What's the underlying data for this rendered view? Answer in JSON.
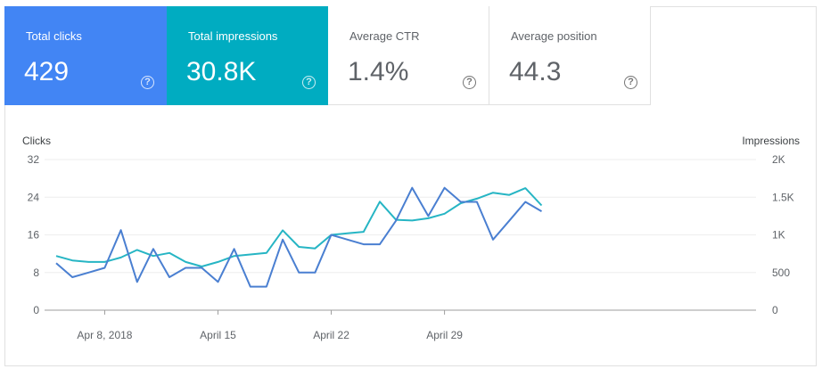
{
  "metrics": {
    "clicks": {
      "label": "Total clicks",
      "value": "429",
      "help_icon": "help-circle-icon",
      "color": "#4285f4"
    },
    "impressions": {
      "label": "Total impressions",
      "value": "30.8K",
      "help_icon": "help-circle-icon",
      "color": "#00acc1"
    },
    "ctr": {
      "label": "Average CTR",
      "value": "1.4%",
      "help_icon": "help-circle-icon"
    },
    "position": {
      "label": "Average position",
      "value": "44.3",
      "help_icon": "help-circle-icon"
    }
  },
  "chart_data": {
    "type": "line",
    "x": [
      "Apr 5",
      "Apr 6",
      "Apr 7",
      "Apr 8",
      "Apr 9",
      "Apr 10",
      "Apr 11",
      "Apr 12",
      "Apr 13",
      "Apr 14",
      "Apr 15",
      "Apr 16",
      "Apr 17",
      "Apr 18",
      "Apr 19",
      "Apr 20",
      "Apr 21",
      "Apr 22",
      "Apr 23",
      "Apr 24",
      "Apr 25",
      "Apr 26",
      "Apr 27",
      "Apr 28",
      "Apr 29",
      "Apr 30",
      "May 1",
      "May 2",
      "May 3",
      "May 4",
      "May 5"
    ],
    "x_tick_labels": [
      {
        "index": 3,
        "label": "Apr 8, 2018"
      },
      {
        "index": 10,
        "label": "April 15"
      },
      {
        "index": 17,
        "label": "April 22"
      },
      {
        "index": 24,
        "label": "April 29"
      }
    ],
    "left_axis": {
      "label": "Clicks",
      "ticks": [
        "0",
        "8",
        "16",
        "24",
        "32"
      ],
      "range": [
        0,
        32
      ]
    },
    "right_axis": {
      "label": "Impressions",
      "ticks": [
        "0",
        "500",
        "1K",
        "1.5K",
        "2K"
      ],
      "range": [
        0,
        2000
      ]
    },
    "grid": true,
    "series": [
      {
        "name": "Clicks",
        "axis": "left",
        "color": "#4a7fd1",
        "values": [
          10,
          7,
          8,
          9,
          17,
          6,
          13,
          7,
          9,
          9,
          6,
          13,
          5,
          5,
          15,
          8,
          8,
          16,
          15,
          14,
          14,
          19,
          26,
          20,
          26,
          23,
          23,
          15,
          19,
          23,
          21
        ]
      },
      {
        "name": "Impressions",
        "axis": "right",
        "color": "#26b5c4",
        "values": [
          720,
          660,
          640,
          640,
          700,
          800,
          720,
          760,
          640,
          580,
          640,
          720,
          740,
          760,
          1060,
          840,
          820,
          1000,
          1020,
          1040,
          1440,
          1200,
          1190,
          1220,
          1280,
          1420,
          1480,
          1560,
          1530,
          1620,
          1390
        ]
      }
    ]
  }
}
